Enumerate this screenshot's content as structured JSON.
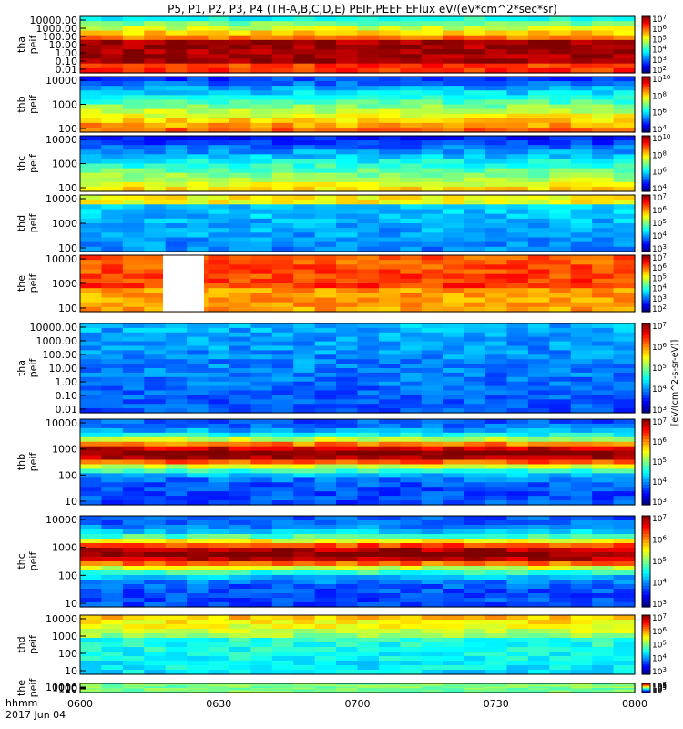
{
  "title": "P5, P1, P2, P3, P4 (TH-A,B,C,D,E) PEIF,PEEF EFlux eV/(eV*cm^2*sec*sr)",
  "time_axis": {
    "label_line1": "hhmm",
    "label_line2": "2017 Jun 04",
    "ticks": [
      "0600",
      "0630",
      "0700",
      "0730",
      "0800"
    ]
  },
  "colorbar_title": "[eV/(cm^2-s-sr-eV)]",
  "chart_data": [
    {
      "type": "heatmap",
      "ylabel": "tha peif",
      "yticks": [
        "10000.00",
        "1000.00",
        "100.00",
        "10.00",
        "1.00",
        "0.10",
        "0.01"
      ],
      "yscale": "log",
      "cbticks": [
        "10^7",
        "10^6",
        "10^5",
        "10^4",
        "10^3",
        "10^2"
      ]
    },
    {
      "type": "heatmap",
      "ylabel": "thb peif",
      "yticks": [
        "10000",
        "1000",
        "100"
      ],
      "yscale": "log",
      "cbticks": [
        "10^10",
        "10^8",
        "10^6",
        "10^4"
      ]
    },
    {
      "type": "heatmap",
      "ylabel": "thc peif",
      "yticks": [
        "10000",
        "1000",
        "100"
      ],
      "yscale": "log",
      "cbticks": [
        "10^10",
        "10^8",
        "10^6",
        "10^4"
      ]
    },
    {
      "type": "heatmap",
      "ylabel": "thd peif",
      "yticks": [
        "10000",
        "1000",
        "100"
      ],
      "yscale": "log",
      "cbticks": [
        "10^7",
        "10^6",
        "10^5",
        "10^4",
        "10^3"
      ]
    },
    {
      "type": "heatmap",
      "ylabel": "the peif",
      "yticks": [
        "10000",
        "1000",
        "100"
      ],
      "yscale": "log",
      "cbticks": [
        "10^7",
        "10^6",
        "10^5",
        "10^4",
        "10^3",
        "10^2"
      ]
    },
    {
      "type": "heatmap",
      "ylabel": "tha peif",
      "yticks": [
        "10000.00",
        "1000.00",
        "100.00",
        "10.00",
        "1.00",
        "0.10",
        "0.01"
      ],
      "yscale": "log",
      "cbticks": [
        "10^7",
        "10^6",
        "10^5",
        "10^4",
        "10^3"
      ]
    },
    {
      "type": "heatmap",
      "ylabel": "thb peif",
      "yticks": [
        "10000",
        "1000",
        "100",
        "10"
      ],
      "yscale": "log",
      "cbticks": [
        "10^7",
        "10^6",
        "10^5",
        "10^4",
        "10^3"
      ]
    },
    {
      "type": "heatmap",
      "ylabel": "thc peif",
      "yticks": [
        "10000",
        "1000",
        "100",
        "10"
      ],
      "yscale": "log",
      "cbticks": [
        "10^7",
        "10^6",
        "10^5",
        "10^4",
        "10^3"
      ]
    },
    {
      "type": "heatmap",
      "ylabel": "thd peif",
      "yticks": [
        "10000",
        "1000",
        "100",
        "10"
      ],
      "yscale": "log",
      "cbticks": [
        "10^7",
        "10^6",
        "10^5",
        "10^4",
        "10^3"
      ]
    },
    {
      "type": "heatmap",
      "ylabel": "the peif",
      "yticks": [
        "10000",
        "1000",
        "100",
        "10"
      ],
      "yscale": "log",
      "cbticks": [
        "10^7",
        "10^6",
        "10^5",
        "10^4",
        "10^3"
      ]
    }
  ]
}
